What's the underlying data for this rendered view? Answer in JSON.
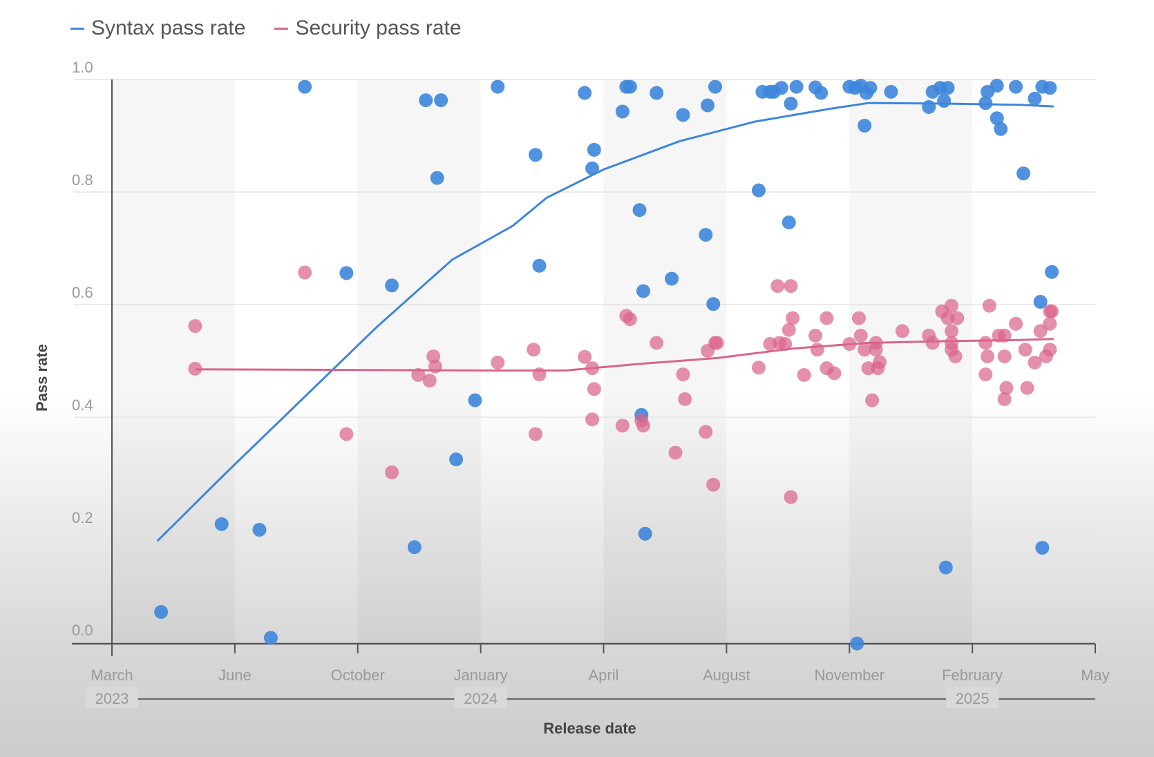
{
  "chart_data": {
    "type": "scatter",
    "title": "",
    "xlabel": "Release date",
    "ylabel": "Pass rate",
    "x_unit": "months since March 2023",
    "xlim": [
      0,
      26
    ],
    "ylim": [
      0.0,
      1.0
    ],
    "grid": true,
    "legend_position": "top-left",
    "yticks": [
      {
        "value": 0.0,
        "label": "0.0"
      },
      {
        "value": 0.2,
        "label": "0.2"
      },
      {
        "value": 0.4,
        "label": "0.4"
      },
      {
        "value": 0.6,
        "label": "0.6"
      },
      {
        "value": 0.8,
        "label": "0.8"
      },
      {
        "value": 1.0,
        "label": "1.0"
      }
    ],
    "xticks": [
      {
        "value": 0,
        "label": "March"
      },
      {
        "value": 3.25,
        "label": "June"
      },
      {
        "value": 6.5,
        "label": "October"
      },
      {
        "value": 9.75,
        "label": "January"
      },
      {
        "value": 13,
        "label": "April"
      },
      {
        "value": 16.25,
        "label": "August"
      },
      {
        "value": 19.5,
        "label": "November"
      },
      {
        "value": 22.75,
        "label": "February"
      },
      {
        "value": 26,
        "label": "May"
      }
    ],
    "year_labels": [
      {
        "value": 0,
        "label": "2023"
      },
      {
        "value": 9.75,
        "label": "2024"
      },
      {
        "value": 22.75,
        "label": "2025"
      }
    ],
    "series": [
      {
        "name": "Syntax pass rate",
        "color": "#3d86dc",
        "points": [
          [
            1.3,
            0.054
          ],
          [
            2.9,
            0.21
          ],
          [
            3.9,
            0.2
          ],
          [
            4.2,
            0.008
          ],
          [
            5.1,
            0.987
          ],
          [
            6.2,
            0.656
          ],
          [
            7.4,
            0.634
          ],
          [
            8.0,
            0.169
          ],
          [
            8.3,
            0.963
          ],
          [
            8.6,
            0.825
          ],
          [
            8.7,
            0.963
          ],
          [
            9.1,
            0.325
          ],
          [
            9.6,
            0.43
          ],
          [
            10.2,
            0.987
          ],
          [
            11.2,
            0.866
          ],
          [
            11.3,
            0.669
          ],
          [
            12.5,
            0.976
          ],
          [
            12.7,
            0.842
          ],
          [
            12.75,
            0.875
          ],
          [
            13.5,
            0.943
          ],
          [
            13.6,
            0.987
          ],
          [
            13.7,
            0.987
          ],
          [
            13.95,
            0.768
          ],
          [
            14.0,
            0.404
          ],
          [
            14.05,
            0.624
          ],
          [
            14.1,
            0.193
          ],
          [
            14.4,
            0.976
          ],
          [
            14.8,
            0.646
          ],
          [
            15.1,
            0.937
          ],
          [
            15.7,
            0.724
          ],
          [
            15.75,
            0.954
          ],
          [
            15.9,
            0.601
          ],
          [
            15.95,
            0.987
          ],
          [
            17.1,
            0.803
          ],
          [
            17.2,
            0.978
          ],
          [
            17.4,
            0.978
          ],
          [
            17.5,
            0.978
          ],
          [
            17.7,
            0.985
          ],
          [
            17.9,
            0.746
          ],
          [
            17.95,
            0.957
          ],
          [
            18.1,
            0.987
          ],
          [
            18.6,
            0.986
          ],
          [
            18.75,
            0.976
          ],
          [
            19.5,
            0.987
          ],
          [
            19.65,
            0.985
          ],
          [
            19.8,
            0.989
          ],
          [
            19.9,
            0.918
          ],
          [
            19.95,
            0.976
          ],
          [
            20.05,
            0.985
          ],
          [
            19.7,
            -0.002
          ],
          [
            20.6,
            0.978
          ],
          [
            21.6,
            0.951
          ],
          [
            21.7,
            0.978
          ],
          [
            21.9,
            0.985
          ],
          [
            22.0,
            0.962
          ],
          [
            22.1,
            0.985
          ],
          [
            22.05,
            0.133
          ],
          [
            23.1,
            0.958
          ],
          [
            23.15,
            0.978
          ],
          [
            23.4,
            0.989
          ],
          [
            23.4,
            0.931
          ],
          [
            23.5,
            0.912
          ],
          [
            23.9,
            0.987
          ],
          [
            24.1,
            0.833
          ],
          [
            24.4,
            0.966
          ],
          [
            24.55,
            0.605
          ],
          [
            24.6,
            0.987
          ],
          [
            24.6,
            0.168
          ],
          [
            24.8,
            0.985
          ],
          [
            24.85,
            0.658
          ]
        ],
        "trend": [
          [
            1.2,
            0.18
          ],
          [
            3.0,
            0.3
          ],
          [
            5.0,
            0.43
          ],
          [
            7.0,
            0.56
          ],
          [
            9.0,
            0.68
          ],
          [
            10.6,
            0.74
          ],
          [
            11.5,
            0.79
          ],
          [
            13.0,
            0.84
          ],
          [
            15.0,
            0.89
          ],
          [
            17.0,
            0.925
          ],
          [
            19.0,
            0.948
          ],
          [
            20.0,
            0.958
          ],
          [
            22.0,
            0.957
          ],
          [
            24.0,
            0.955
          ],
          [
            24.9,
            0.952
          ]
        ]
      },
      {
        "name": "Security pass rate",
        "color": "#d9648a",
        "points": [
          [
            2.2,
            0.562
          ],
          [
            2.2,
            0.486
          ],
          [
            5.1,
            0.657
          ],
          [
            6.2,
            0.37
          ],
          [
            7.4,
            0.302
          ],
          [
            8.1,
            0.475
          ],
          [
            8.4,
            0.465
          ],
          [
            8.5,
            0.508
          ],
          [
            8.55,
            0.49
          ],
          [
            10.2,
            0.497
          ],
          [
            11.2,
            0.37
          ],
          [
            11.15,
            0.52
          ],
          [
            11.3,
            0.476
          ],
          [
            12.5,
            0.507
          ],
          [
            12.7,
            0.487
          ],
          [
            12.75,
            0.45
          ],
          [
            12.7,
            0.396
          ],
          [
            13.5,
            0.385
          ],
          [
            13.6,
            0.58
          ],
          [
            13.7,
            0.574
          ],
          [
            14.0,
            0.394
          ],
          [
            14.05,
            0.385
          ],
          [
            14.4,
            0.532
          ],
          [
            14.9,
            0.337
          ],
          [
            15.1,
            0.476
          ],
          [
            15.15,
            0.432
          ],
          [
            15.7,
            0.374
          ],
          [
            15.75,
            0.518
          ],
          [
            15.9,
            0.28
          ],
          [
            15.95,
            0.532
          ],
          [
            16.0,
            0.532
          ],
          [
            17.1,
            0.488
          ],
          [
            17.4,
            0.53
          ],
          [
            17.6,
            0.633
          ],
          [
            17.65,
            0.532
          ],
          [
            17.8,
            0.53
          ],
          [
            17.9,
            0.555
          ],
          [
            17.95,
            0.633
          ],
          [
            17.95,
            0.258
          ],
          [
            18.0,
            0.576
          ],
          [
            18.3,
            0.475
          ],
          [
            18.6,
            0.545
          ],
          [
            18.65,
            0.52
          ],
          [
            18.9,
            0.576
          ],
          [
            18.9,
            0.487
          ],
          [
            19.1,
            0.478
          ],
          [
            19.5,
            0.53
          ],
          [
            19.75,
            0.576
          ],
          [
            19.8,
            0.545
          ],
          [
            19.9,
            0.52
          ],
          [
            20.0,
            0.487
          ],
          [
            20.1,
            0.43
          ],
          [
            20.2,
            0.532
          ],
          [
            20.2,
            0.52
          ],
          [
            20.25,
            0.487
          ],
          [
            20.3,
            0.498
          ],
          [
            20.9,
            0.553
          ],
          [
            21.6,
            0.545
          ],
          [
            21.7,
            0.532
          ],
          [
            21.95,
            0.588
          ],
          [
            22.1,
            0.576
          ],
          [
            22.2,
            0.598
          ],
          [
            22.2,
            0.553
          ],
          [
            22.2,
            0.532
          ],
          [
            22.2,
            0.52
          ],
          [
            22.3,
            0.508
          ],
          [
            22.35,
            0.576
          ],
          [
            23.1,
            0.532
          ],
          [
            23.15,
            0.508
          ],
          [
            23.1,
            0.476
          ],
          [
            23.2,
            0.598
          ],
          [
            23.45,
            0.545
          ],
          [
            23.6,
            0.545
          ],
          [
            23.6,
            0.508
          ],
          [
            23.65,
            0.452
          ],
          [
            23.6,
            0.432
          ],
          [
            23.9,
            0.566
          ],
          [
            24.2,
            0.452
          ],
          [
            24.15,
            0.52
          ],
          [
            24.4,
            0.497
          ],
          [
            24.55,
            0.553
          ],
          [
            24.7,
            0.508
          ],
          [
            24.8,
            0.566
          ],
          [
            24.8,
            0.52
          ],
          [
            24.8,
            0.588
          ],
          [
            24.85,
            0.588
          ]
        ],
        "trend": [
          [
            2.2,
            0.485
          ],
          [
            6.0,
            0.484
          ],
          [
            10.0,
            0.483
          ],
          [
            12.0,
            0.483
          ],
          [
            14.0,
            0.495
          ],
          [
            16.0,
            0.505
          ],
          [
            18.0,
            0.522
          ],
          [
            20.0,
            0.532
          ],
          [
            22.0,
            0.535
          ],
          [
            24.0,
            0.537
          ],
          [
            24.9,
            0.539
          ]
        ]
      }
    ]
  },
  "legend": {
    "items": [
      {
        "label": "Syntax pass rate",
        "color": "#3d86dc"
      },
      {
        "label": "Security pass rate",
        "color": "#d9648a"
      }
    ]
  }
}
